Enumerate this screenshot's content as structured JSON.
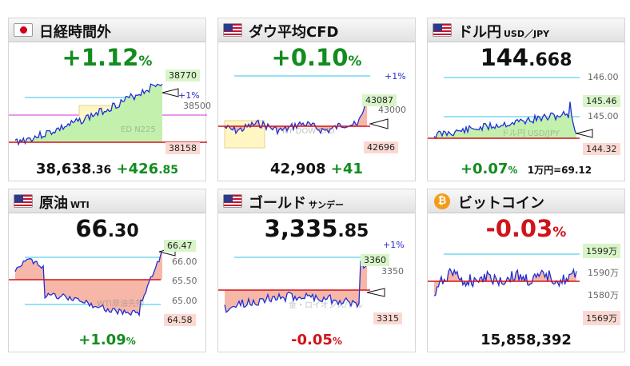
{
  "colors": {
    "up": "#128c1f",
    "down": "#d0141a",
    "line": "#1d2fd6",
    "area_up": "#c3f0ad",
    "area_down": "#f7b7a8",
    "range_line": "#2ec4ef"
  },
  "panels": [
    {
      "flag": "jp-flag-icon",
      "title": "日経時間外",
      "price_main": "+1.12",
      "price_pct": "%",
      "labels": {
        "high": "38770",
        "plus1": "+1%",
        "mid": "38500",
        "low": "38158"
      },
      "watermark": "ED N225",
      "bottom_main": "38,638",
      "bottom_small": ".36",
      "bottom_change_main": "+426",
      "bottom_change_small": ".85"
    },
    {
      "flag": "us-flag-icon",
      "title": "ダウ平均CFD",
      "price_main": "+0.10",
      "price_pct": "%",
      "labels": {
        "plus1": "+1%",
        "high": "43087",
        "mid": "43000",
        "low": "42696"
      },
      "watermark": "NY DOW CFD",
      "bottom_main": "42,908",
      "bottom_change": "+41"
    },
    {
      "flag": "us-flag-icon",
      "title": "ドル円",
      "title_sub": "USD／JPY",
      "price_main": "144",
      "price_small": ".668",
      "labels": {
        "top": "146.00",
        "high": "145.46",
        "mid": "145.00",
        "low": "144.32"
      },
      "watermark": "ドル円 USD/JPY",
      "bottom_change_main": "+0.07",
      "bottom_pct": "%",
      "bottom_note": "1万円=69.12"
    },
    {
      "flag": "us-flag-icon",
      "title": "原油",
      "title_sub": "WTI",
      "price_main": "66",
      "price_small": ".30",
      "labels": {
        "high": "66.47",
        "l1": "66.00",
        "l2": "65.50",
        "l3": "65.00",
        "low": "64.58"
      },
      "watermark": "WTI原油先物",
      "bottom_change_main": "+1.09",
      "bottom_pct": "%"
    },
    {
      "flag": "us-flag-icon",
      "title": "ゴールド",
      "title_sub": "サンデー",
      "price_main": "3,335",
      "price_small": ".85",
      "labels": {
        "plus1": "+1%",
        "high": "3360",
        "mid": "3350",
        "low": "3315"
      },
      "watermark": "金・ロイオンス/ドル",
      "bottom_change_main": "-0.05",
      "bottom_pct": "%"
    },
    {
      "flag": "bitcoin-icon",
      "coin_symbol": "₿",
      "title": "ビットコイン",
      "price_main": "-0.03",
      "price_pct": "%",
      "labels": {
        "high": "1599万",
        "l1": "1590万",
        "l2": "1580万",
        "low": "1569万"
      },
      "bottom_main": "15,858,392"
    }
  ]
}
